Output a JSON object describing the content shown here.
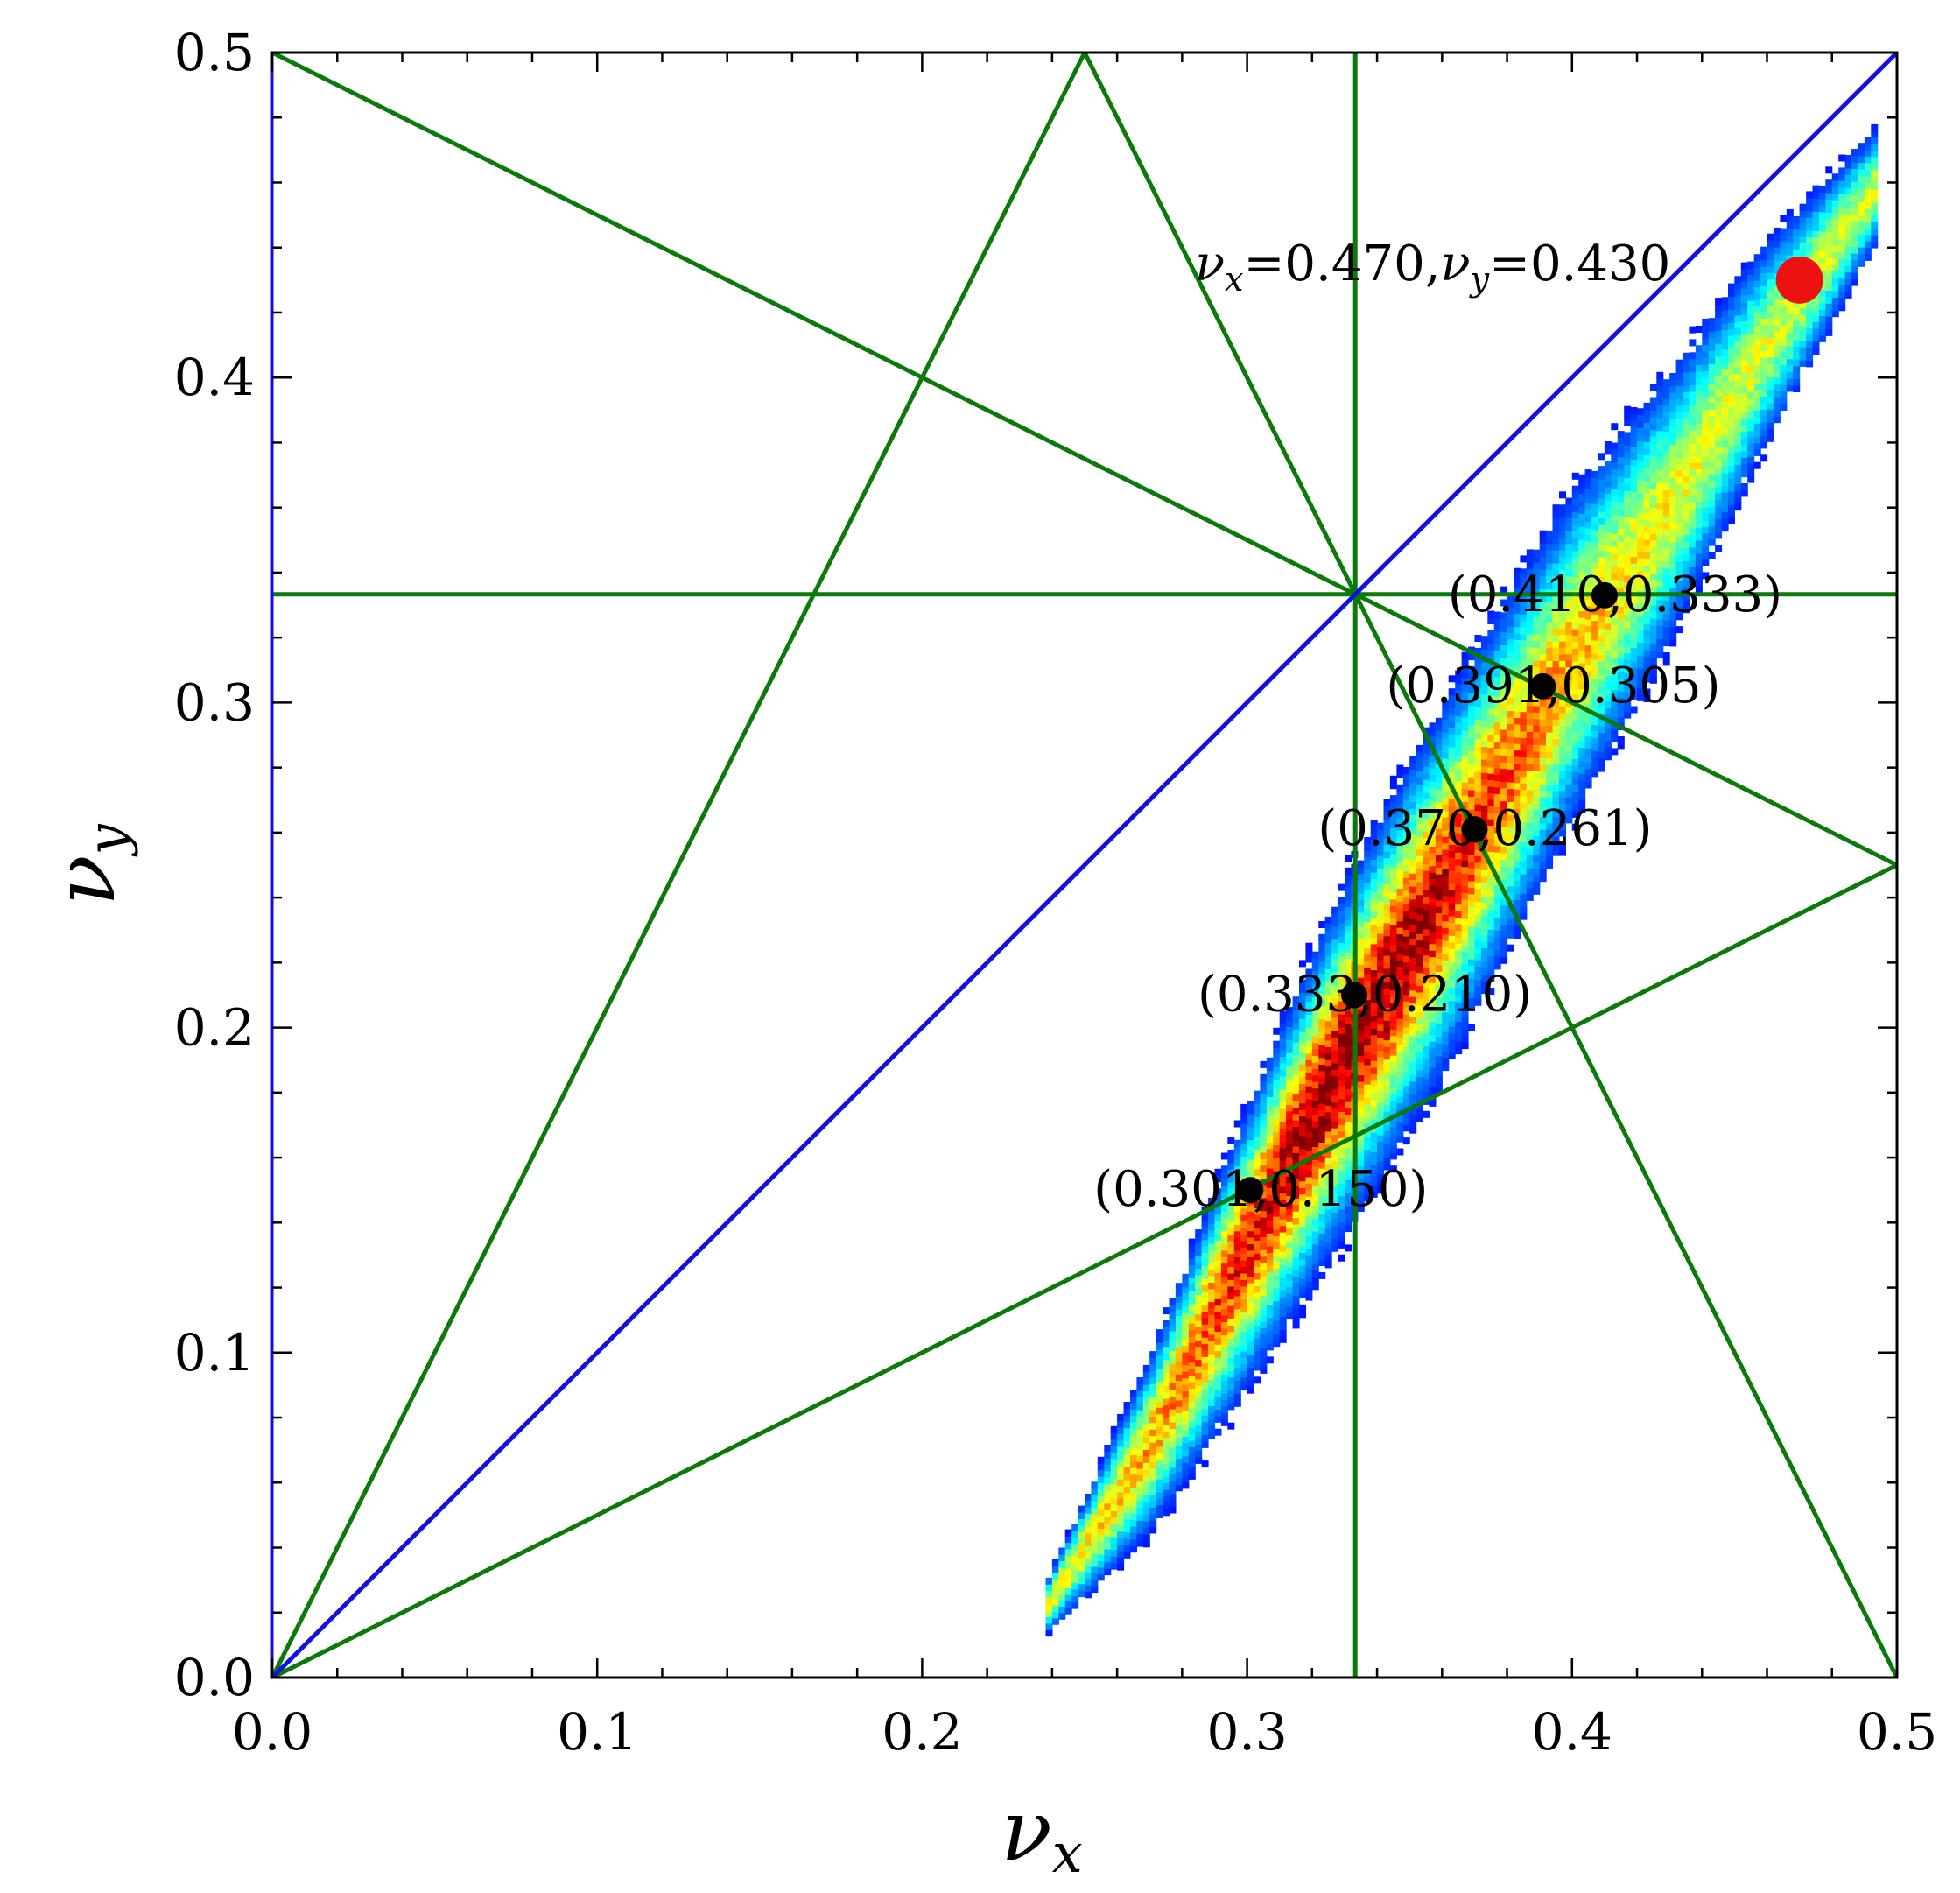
{
  "chart_data": {
    "type": "heatmap",
    "title": "",
    "xlabel": "ν",
    "xlabel_sub": "x",
    "ylabel": "ν",
    "ylabel_sub": "y",
    "xlim": [
      0.0,
      0.5
    ],
    "ylim": [
      0.0,
      0.5
    ],
    "x_ticks": [
      "0.0",
      "0.1",
      "0.2",
      "0.3",
      "0.4",
      "0.5"
    ],
    "y_ticks": [
      "0.0",
      "0.1",
      "0.2",
      "0.3",
      "0.4",
      "0.5"
    ],
    "grid": false,
    "colormap": "jet",
    "diagonal_line": {
      "color": "#1010e0",
      "points": [
        [
          0.0,
          0.0
        ],
        [
          0.5,
          0.5
        ]
      ]
    },
    "resonance_lines": {
      "color": "#0b7a0b",
      "segments": [
        {
          "x1": 0.0,
          "y1": 0.5,
          "x2": 0.5,
          "y2": 0.25
        },
        {
          "x1": 0.0,
          "y1": 0.0,
          "x2": 0.25,
          "y2": 0.5
        },
        {
          "x1": 0.25,
          "y1": 0.5,
          "x2": 0.5,
          "y2": 0.0
        },
        {
          "x1": 0.0,
          "y1": 0.0,
          "x2": 0.5,
          "y2": 0.25
        },
        {
          "x1": 0.3333,
          "y1": 0.0,
          "x2": 0.3333,
          "y2": 0.5
        },
        {
          "x1": 0.0,
          "y1": 0.3333,
          "x2": 0.5,
          "y2": 0.3333
        }
      ]
    },
    "density_distribution": {
      "ridge": [
        [
          0.238,
          0.02
        ],
        [
          0.27,
          0.07
        ],
        [
          0.3,
          0.13
        ],
        [
          0.325,
          0.18
        ],
        [
          0.35,
          0.225
        ],
        [
          0.375,
          0.27
        ],
        [
          0.4,
          0.315
        ],
        [
          0.43,
          0.36
        ],
        [
          0.46,
          0.41
        ],
        [
          0.495,
          0.46
        ]
      ],
      "peak": [
        0.335,
        0.19
      ],
      "density_tail": "blue",
      "density_core": "dark-red"
    },
    "working_point": {
      "x": 0.47,
      "y": 0.43,
      "color": "#ee1111",
      "label": "ν<sub>x</sub>=0.470,ν<sub>y</sub>=0.430"
    },
    "points": [
      {
        "x": 0.41,
        "y": 0.333,
        "label": "(0.410,0.333)"
      },
      {
        "x": 0.391,
        "y": 0.305,
        "label": "(0.391,0.305)"
      },
      {
        "x": 0.37,
        "y": 0.261,
        "label": "(0.370,0.261)"
      },
      {
        "x": 0.333,
        "y": 0.21,
        "label": "(0.333,0.210)"
      },
      {
        "x": 0.301,
        "y": 0.15,
        "label": "(0.301,0.150)"
      }
    ],
    "wp_label_parts": {
      "nu": "ν",
      "x_sub": "x",
      "eq_x": "=0.470,",
      "y_sub": "y",
      "eq_y": "=0.430"
    }
  }
}
